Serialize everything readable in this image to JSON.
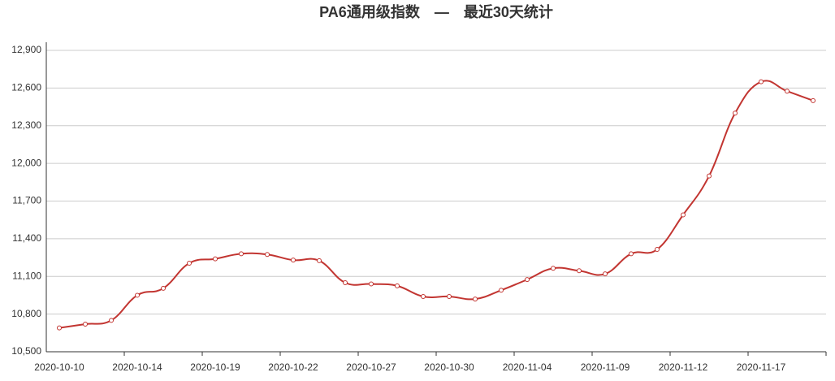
{
  "chart_data": {
    "type": "line",
    "title": "PA6通用级指数　—　最近30天统计",
    "categories": [
      "2020-10-10",
      null,
      null,
      "2020-10-14",
      null,
      null,
      "2020-10-19",
      null,
      null,
      "2020-10-22",
      null,
      null,
      "2020-10-27",
      null,
      null,
      "2020-10-30",
      null,
      null,
      "2020-11-04",
      null,
      null,
      "2020-11-09",
      null,
      null,
      "2020-11-12",
      null,
      null,
      "2020-11-17",
      null,
      null
    ],
    "series": [
      {
        "color": "#c23531",
        "values": [
          10690,
          10720,
          10750,
          10950,
          11005,
          11205,
          11240,
          11280,
          11275,
          11230,
          11225,
          11050,
          11040,
          11025,
          10940,
          10940,
          10920,
          10990,
          11075,
          11165,
          11145,
          11120,
          11280,
          11315,
          11590,
          11900,
          12400,
          12650,
          12575,
          12500
        ]
      }
    ],
    "ylim": [
      10500,
      12900
    ],
    "yticks": [
      {
        "value": 10500,
        "label": "10,500"
      },
      {
        "value": 10800,
        "label": "10,800"
      },
      {
        "value": 11100,
        "label": "11,100"
      },
      {
        "value": 11400,
        "label": "11,400"
      },
      {
        "value": 11700,
        "label": "11,700"
      },
      {
        "value": 12000,
        "label": "12,000"
      },
      {
        "value": 12300,
        "label": "12,300"
      },
      {
        "value": 12600,
        "label": "12,600"
      },
      {
        "value": 12900,
        "label": "12,900"
      }
    ],
    "grid": true
  }
}
